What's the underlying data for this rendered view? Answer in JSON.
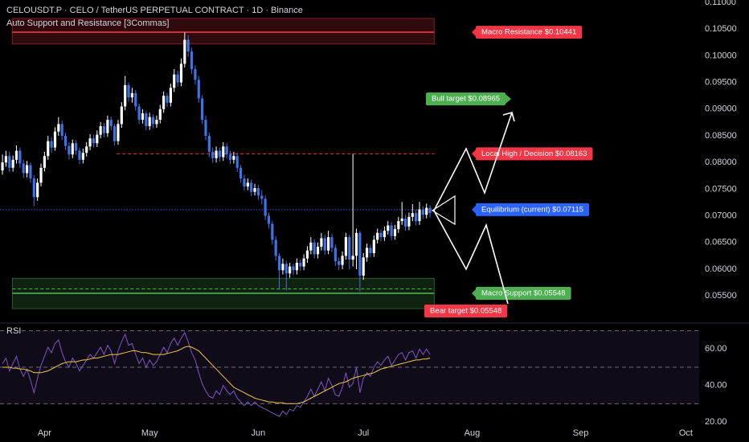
{
  "chart_data": {
    "type": "candlestick",
    "title": "CELOUSDT.P · CELO / TetherUS PERPETUAL CONTRACT · 1D · Binance",
    "subtitle": "Auto Support and Resistance [3Commas]",
    "up_color": "#ffffff",
    "down_color": "#3d73e8",
    "xlim": [
      -0.7,
      198.8
    ],
    "xticks": [
      {
        "value": 12,
        "label": "Apr"
      },
      {
        "value": 42,
        "label": "May"
      },
      {
        "value": 73,
        "label": "Jun"
      },
      {
        "value": 103,
        "label": "Jul"
      },
      {
        "value": 134,
        "label": "Aug"
      },
      {
        "value": 165,
        "label": "Sep"
      },
      {
        "value": 195,
        "label": "Oct"
      }
    ],
    "ylim": [
      0.0502,
      0.11045
    ],
    "yticks": [
      {
        "value": 0.11,
        "label": "0.11000"
      },
      {
        "value": 0.105,
        "label": "0.10500"
      },
      {
        "value": 0.1,
        "label": "0.10000"
      },
      {
        "value": 0.095,
        "label": "0.09500"
      },
      {
        "value": 0.09,
        "label": "0.09000"
      },
      {
        "value": 0.085,
        "label": "0.08500"
      },
      {
        "value": 0.08,
        "label": "0.08000"
      },
      {
        "value": 0.075,
        "label": "0.07500"
      },
      {
        "value": 0.07,
        "label": "0.07000"
      },
      {
        "value": 0.065,
        "label": "0.06500"
      },
      {
        "value": 0.06,
        "label": "0.06000"
      },
      {
        "value": 0.055,
        "label": "0.05500"
      }
    ],
    "open": [
      0.0785,
      0.08,
      0.0812,
      0.079,
      0.0805,
      0.0822,
      0.0798,
      0.078,
      0.0795,
      0.077,
      0.0735,
      0.0762,
      0.079,
      0.0812,
      0.084,
      0.0828,
      0.0858,
      0.0872,
      0.085,
      0.0831,
      0.0815,
      0.0836,
      0.0822,
      0.0805,
      0.0818,
      0.083,
      0.0845,
      0.0836,
      0.0852,
      0.0868,
      0.0855,
      0.088,
      0.0868,
      0.084,
      0.0872,
      0.0905,
      0.0945,
      0.0922,
      0.093,
      0.0905,
      0.088,
      0.0892,
      0.0868,
      0.0885,
      0.0872,
      0.088,
      0.09,
      0.0925,
      0.0912,
      0.094,
      0.0965,
      0.095,
      0.0985,
      0.103,
      0.1008,
      0.0975,
      0.0955,
      0.092,
      0.088,
      0.085,
      0.082,
      0.0808,
      0.0822,
      0.081,
      0.083,
      0.0815,
      0.0805,
      0.0812,
      0.079,
      0.077,
      0.0755,
      0.0762,
      0.0745,
      0.0752,
      0.0738,
      0.0732,
      0.07,
      0.0685,
      0.0655,
      0.0625,
      0.0598,
      0.061,
      0.0592,
      0.0605,
      0.0598,
      0.0612,
      0.0605,
      0.062,
      0.0635,
      0.065,
      0.0628,
      0.0642,
      0.0658,
      0.0635,
      0.066,
      0.064,
      0.0615,
      0.0608,
      0.0625,
      0.066,
      0.0618,
      0.0625,
      0.0668,
      0.0588,
      0.0622,
      0.064,
      0.063,
      0.0655,
      0.0668,
      0.066,
      0.0672,
      0.0682,
      0.0662,
      0.0675,
      0.069,
      0.0695,
      0.068,
      0.0698,
      0.0705,
      0.069,
      0.0712,
      0.0702,
      0.0715
    ],
    "high": [
      0.0815,
      0.0822,
      0.082,
      0.0813,
      0.0832,
      0.0828,
      0.0805,
      0.0803,
      0.08,
      0.0776,
      0.077,
      0.0798,
      0.082,
      0.085,
      0.0848,
      0.0866,
      0.0885,
      0.0878,
      0.0856,
      0.0838,
      0.0843,
      0.0842,
      0.0828,
      0.0826,
      0.0838,
      0.0853,
      0.0852,
      0.086,
      0.0876,
      0.0874,
      0.0888,
      0.0886,
      0.0872,
      0.088,
      0.0913,
      0.0962,
      0.095,
      0.094,
      0.0936,
      0.091,
      0.09,
      0.0896,
      0.0893,
      0.089,
      0.0888,
      0.0908,
      0.0933,
      0.093,
      0.0948,
      0.0975,
      0.0972,
      0.0995,
      0.1044,
      0.1038,
      0.1015,
      0.0982,
      0.0962,
      0.0926,
      0.0888,
      0.0856,
      0.0828,
      0.083,
      0.0828,
      0.0838,
      0.0836,
      0.0822,
      0.082,
      0.0818,
      0.0796,
      0.0777,
      0.077,
      0.0768,
      0.076,
      0.0758,
      0.0748,
      0.0738,
      0.0706,
      0.069,
      0.0662,
      0.063,
      0.062,
      0.0616,
      0.0612,
      0.061,
      0.062,
      0.0618,
      0.0628,
      0.0643,
      0.066,
      0.0656,
      0.065,
      0.0668,
      0.0664,
      0.0672,
      0.0666,
      0.0646,
      0.0622,
      0.0633,
      0.0668,
      0.0664,
      0.0816,
      0.0676,
      0.0672,
      0.063,
      0.0648,
      0.0646,
      0.0663,
      0.0676,
      0.0674,
      0.068,
      0.069,
      0.0688,
      0.0683,
      0.0698,
      0.0726,
      0.0702,
      0.0706,
      0.0722,
      0.0712,
      0.0726,
      0.0718,
      0.0723,
      0.072
    ],
    "low": [
      0.0777,
      0.0792,
      0.0782,
      0.0783,
      0.0798,
      0.079,
      0.0771,
      0.0772,
      0.0762,
      0.0718,
      0.0728,
      0.0755,
      0.0783,
      0.0805,
      0.0818,
      0.0822,
      0.085,
      0.0842,
      0.0823,
      0.0806,
      0.0808,
      0.0814,
      0.0797,
      0.0798,
      0.0811,
      0.0823,
      0.0828,
      0.0829,
      0.0845,
      0.0847,
      0.0848,
      0.086,
      0.0832,
      0.0833,
      0.0865,
      0.0898,
      0.0914,
      0.0912,
      0.0897,
      0.0872,
      0.0873,
      0.086,
      0.0861,
      0.0864,
      0.0865,
      0.0873,
      0.0893,
      0.0904,
      0.0905,
      0.0932,
      0.0942,
      0.0943,
      0.0978,
      0.0998,
      0.0966,
      0.0946,
      0.0912,
      0.0872,
      0.0842,
      0.081,
      0.0799,
      0.08,
      0.0802,
      0.0803,
      0.0807,
      0.0797,
      0.0798,
      0.0782,
      0.0762,
      0.0747,
      0.0748,
      0.0737,
      0.0738,
      0.073,
      0.0722,
      0.0692,
      0.0676,
      0.0646,
      0.0616,
      0.0562,
      0.059,
      0.056,
      0.0584,
      0.0589,
      0.059,
      0.0597,
      0.0598,
      0.0612,
      0.0628,
      0.062,
      0.062,
      0.0635,
      0.0627,
      0.0628,
      0.0632,
      0.0606,
      0.0598,
      0.06,
      0.0618,
      0.06,
      0.0605,
      0.06,
      0.0558,
      0.058,
      0.0614,
      0.0622,
      0.0623,
      0.0648,
      0.0652,
      0.0653,
      0.0665,
      0.0654,
      0.0655,
      0.0668,
      0.0683,
      0.0672,
      0.0673,
      0.069,
      0.0682,
      0.0683,
      0.0694,
      0.0695,
      0.0697
    ],
    "close": [
      0.08,
      0.0812,
      0.079,
      0.0805,
      0.0822,
      0.0798,
      0.078,
      0.0795,
      0.077,
      0.0735,
      0.0762,
      0.079,
      0.0812,
      0.084,
      0.0828,
      0.0858,
      0.0872,
      0.085,
      0.0831,
      0.0815,
      0.0836,
      0.0822,
      0.0805,
      0.0818,
      0.083,
      0.0845,
      0.0836,
      0.0852,
      0.0868,
      0.0855,
      0.088,
      0.0868,
      0.084,
      0.0872,
      0.0905,
      0.0945,
      0.0922,
      0.093,
      0.0905,
      0.088,
      0.0892,
      0.0868,
      0.0885,
      0.0872,
      0.088,
      0.09,
      0.0925,
      0.0912,
      0.094,
      0.0965,
      0.095,
      0.0985,
      0.103,
      0.1008,
      0.0975,
      0.0955,
      0.092,
      0.088,
      0.085,
      0.082,
      0.0808,
      0.0822,
      0.081,
      0.083,
      0.0815,
      0.0805,
      0.0812,
      0.079,
      0.077,
      0.0755,
      0.0762,
      0.0745,
      0.0752,
      0.0738,
      0.0732,
      0.07,
      0.0685,
      0.0655,
      0.0625,
      0.0598,
      0.061,
      0.0592,
      0.0605,
      0.0598,
      0.0612,
      0.0605,
      0.062,
      0.0635,
      0.065,
      0.0628,
      0.0642,
      0.0658,
      0.0635,
      0.066,
      0.064,
      0.0615,
      0.0608,
      0.0625,
      0.066,
      0.0618,
      0.0625,
      0.0668,
      0.0588,
      0.0622,
      0.064,
      0.063,
      0.0655,
      0.0668,
      0.066,
      0.0672,
      0.0682,
      0.0662,
      0.0675,
      0.069,
      0.0695,
      0.068,
      0.0698,
      0.0705,
      0.069,
      0.0712,
      0.0702,
      0.0715,
      0.0705
    ],
    "zones": [
      {
        "ylim": [
          0.1022,
          0.107
        ],
        "xlim": [
          2.8,
          123.2
        ],
        "color": "#f23645"
      },
      {
        "ylim": [
          0.0526,
          0.0583
        ],
        "xlim": [
          2.8,
          123.2
        ],
        "color": "#4caf50"
      }
    ],
    "levels": [
      {
        "value": 0.10441,
        "xlim": [
          2.8,
          123.2
        ],
        "color": "#f23645",
        "style": "solid"
      },
      {
        "value": 0.08163,
        "xlim": [
          32.6,
          123.2
        ],
        "color": "#f23645",
        "style": "dashed"
      },
      {
        "value": 0.07115,
        "xlim": [
          -0.7,
          123.2
        ],
        "color": "#2962ff",
        "style": "dotted"
      },
      {
        "value": 0.0563,
        "xlim": [
          2.8,
          123.2
        ],
        "color": "#4caf50",
        "style": "dashed"
      },
      {
        "value": 0.05548,
        "xlim": [
          2.8,
          123.2
        ],
        "color": "#4caf50",
        "style": "solid"
      }
    ],
    "annotations": [
      {
        "text": "Macro Resistance $0.10441",
        "value": 0.10441,
        "color": "#f23645"
      },
      {
        "text": "Bull target $0.08965",
        "value": 0.08965,
        "color": "#4caf50"
      },
      {
        "text": "Local High / Decision $0.08163",
        "value": 0.08163,
        "color": "#f23645"
      },
      {
        "text": "Equilibrium (current) $0.07115",
        "value": 0.07115,
        "color": "#2962ff"
      },
      {
        "text": "Macro Support $0.05548",
        "value": 0.05548,
        "color": "#4caf50"
      },
      {
        "text": "Bear target $0.05548",
        "value": 0.05548,
        "color": "#f23645"
      }
    ],
    "rsi": {
      "title": "RSI",
      "ylim": [
        17.8,
        72.9
      ],
      "yticks": [
        {
          "value": 60,
          "label": "60.00"
        },
        {
          "value": 40,
          "label": "40.00"
        },
        {
          "value": 20,
          "label": "20.00"
        }
      ],
      "levels": [
        70,
        50,
        30
      ],
      "band": [
        30,
        70
      ],
      "band_color": "#7e57c2",
      "series": [
        {
          "color": "#7e57c2",
          "values": [
            52,
            55,
            48,
            52,
            56,
            49,
            45,
            49,
            43,
            36,
            44,
            51,
            56,
            61,
            58,
            63,
            65,
            58,
            53,
            50,
            55,
            52,
            48,
            51,
            54,
            57,
            55,
            58,
            61,
            57,
            62,
            59,
            52,
            59,
            64,
            68,
            62,
            63,
            57,
            52,
            55,
            50,
            54,
            51,
            53,
            57,
            61,
            58,
            63,
            66,
            62,
            66,
            69,
            64,
            58,
            54,
            47,
            41,
            37,
            34,
            33,
            37,
            35,
            40,
            37,
            35,
            37,
            33,
            31,
            29,
            31,
            29,
            31,
            29,
            28,
            27,
            26,
            25,
            24,
            23,
            26,
            24,
            27,
            26,
            29,
            28,
            31,
            34,
            38,
            34,
            38,
            42,
            37,
            44,
            40,
            35,
            34,
            39,
            47,
            39,
            41,
            50,
            36,
            44,
            47,
            45,
            50,
            53,
            51,
            54,
            56,
            51,
            54,
            57,
            58,
            54,
            58,
            59,
            55,
            60,
            57,
            60,
            57
          ]
        },
        {
          "color": "#f7c548",
          "values": [
            50,
            50,
            50,
            49.5,
            49.5,
            49,
            49,
            48.5,
            48,
            47,
            47,
            47,
            47.5,
            48,
            49,
            50,
            51,
            52,
            52.5,
            53,
            53,
            53,
            53.5,
            54,
            54,
            54.5,
            55,
            55,
            55.5,
            56,
            56.5,
            57,
            57,
            57,
            57.5,
            58,
            58.5,
            59,
            59,
            58.5,
            58,
            58,
            57.5,
            57,
            57,
            57,
            57,
            57.5,
            58,
            58.5,
            59,
            60,
            61,
            61.5,
            61,
            60,
            59,
            57,
            55,
            53,
            51,
            49,
            47,
            45,
            43,
            41,
            39,
            38,
            37,
            36,
            35,
            34,
            33,
            32.5,
            32,
            31.5,
            31,
            31,
            30.5,
            30.5,
            30.5,
            30,
            30,
            30,
            30,
            30.5,
            31,
            32,
            33,
            34,
            35,
            36,
            37,
            38,
            39,
            40,
            41,
            41.5,
            42,
            43,
            44,
            44.5,
            45,
            45.5,
            46,
            46.5,
            47,
            48,
            49,
            49.5,
            50,
            50.5,
            51,
            51.5,
            52,
            52.5,
            53,
            53.5,
            54,
            54,
            54.5,
            54.5,
            55
          ]
        }
      ]
    }
  }
}
